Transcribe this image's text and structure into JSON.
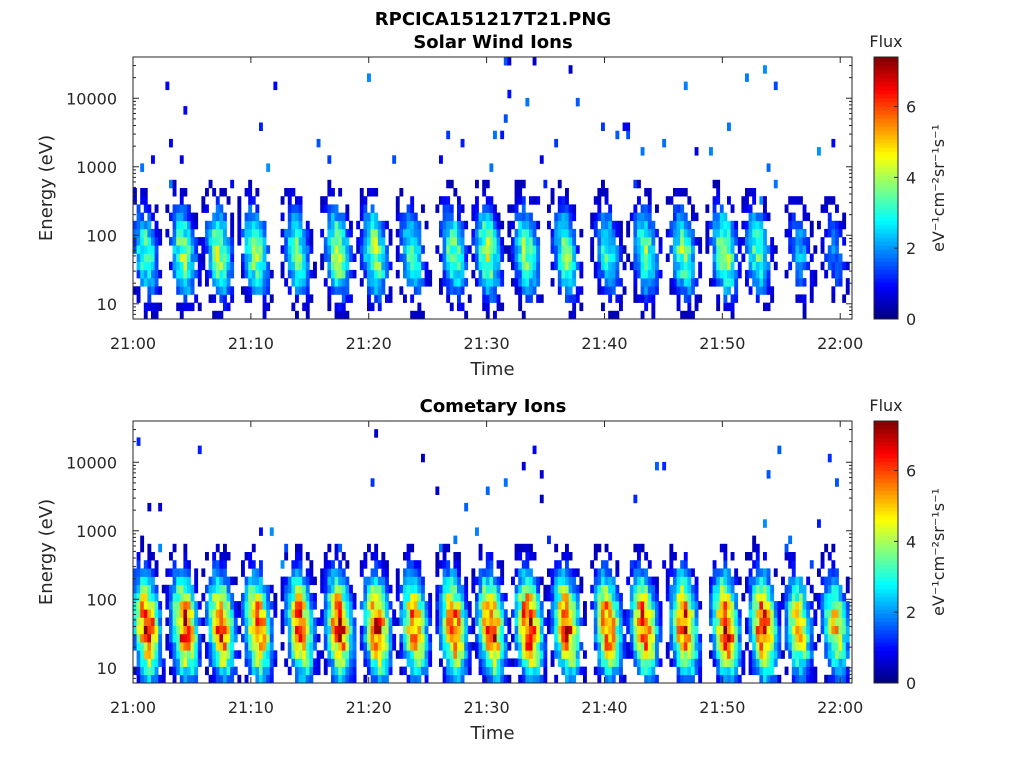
{
  "figure": {
    "title": "RPCICA151217T21.PNG"
  },
  "chart_data": [
    {
      "type": "heatmap",
      "title": "Solar Wind Ions",
      "xlabel": "Time",
      "ylabel": "Energy (eV)",
      "x_range": [
        "21:00",
        "22:01"
      ],
      "x_ticks": [
        "21:00",
        "21:10",
        "21:20",
        "21:30",
        "21:40",
        "21:50",
        "22:00"
      ],
      "y_scale": "log",
      "y_range": [
        6,
        40000
      ],
      "y_ticks": [
        "10",
        "100",
        "1000",
        "10000"
      ],
      "y_tick_values": [
        10,
        100,
        1000,
        10000
      ],
      "colorbar": {
        "title": "Flux",
        "label": "eV⁻¹cm⁻²sr⁻¹s⁻¹",
        "range": [
          0,
          7.4
        ],
        "ticks": [
          "0",
          "2",
          "4",
          "6"
        ],
        "tick_values": [
          0,
          2,
          4,
          6
        ],
        "colormap": "jet"
      },
      "bursts": [
        {
          "t": 1.1,
          "f": 3.4
        },
        {
          "t": 4.3,
          "f": 3.9
        },
        {
          "t": 7.3,
          "f": 4.1
        },
        {
          "t": 10.4,
          "f": 3.9
        },
        {
          "t": 13.9,
          "f": 3.5
        },
        {
          "t": 17.4,
          "f": 4.1
        },
        {
          "t": 20.5,
          "f": 4.0
        },
        {
          "t": 23.7,
          "f": 3.3
        },
        {
          "t": 27.2,
          "f": 3.7
        },
        {
          "t": 30.1,
          "f": 4.2
        },
        {
          "t": 33.4,
          "f": 3.8
        },
        {
          "t": 36.7,
          "f": 3.6
        },
        {
          "t": 40.3,
          "f": 3.1
        },
        {
          "t": 43.5,
          "f": 3.6
        },
        {
          "t": 46.7,
          "f": 3.7
        },
        {
          "t": 50.2,
          "f": 4.1
        },
        {
          "t": 53.0,
          "f": 3.4
        },
        {
          "t": 56.6,
          "f": 2.2
        },
        {
          "t": 59.5,
          "f": 1.8
        }
      ]
    },
    {
      "type": "heatmap",
      "title": "Cometary Ions",
      "xlabel": "Time",
      "ylabel": "Energy (eV)",
      "x_range": [
        "21:00",
        "22:01"
      ],
      "x_ticks": [
        "21:00",
        "21:10",
        "21:20",
        "21:30",
        "21:40",
        "21:50",
        "22:00"
      ],
      "y_scale": "log",
      "y_range": [
        6,
        40000
      ],
      "y_ticks": [
        "10",
        "100",
        "1000",
        "10000"
      ],
      "y_tick_values": [
        10,
        100,
        1000,
        10000
      ],
      "colorbar": {
        "title": "Flux",
        "label": "eV⁻¹cm⁻²sr⁻¹s⁻¹",
        "range": [
          0,
          7.4
        ],
        "ticks": [
          "0",
          "2",
          "4",
          "6"
        ],
        "tick_values": [
          0,
          2,
          4,
          6
        ],
        "colormap": "jet"
      },
      "bursts": [
        {
          "t": 1.2,
          "f": 6.6
        },
        {
          "t": 4.4,
          "f": 6.5
        },
        {
          "t": 7.5,
          "f": 6.3
        },
        {
          "t": 10.6,
          "f": 6.4
        },
        {
          "t": 14.2,
          "f": 6.2
        },
        {
          "t": 17.5,
          "f": 6.5
        },
        {
          "t": 20.7,
          "f": 6.4
        },
        {
          "t": 23.9,
          "f": 5.8
        },
        {
          "t": 27.2,
          "f": 6.2
        },
        {
          "t": 30.4,
          "f": 6.6
        },
        {
          "t": 33.6,
          "f": 6.7
        },
        {
          "t": 36.8,
          "f": 6.4
        },
        {
          "t": 40.3,
          "f": 6.0
        },
        {
          "t": 43.4,
          "f": 6.3
        },
        {
          "t": 46.8,
          "f": 6.4
        },
        {
          "t": 50.3,
          "f": 6.6
        },
        {
          "t": 53.5,
          "f": 6.6
        },
        {
          "t": 56.5,
          "f": 4.9
        },
        {
          "t": 59.6,
          "f": 4.8
        }
      ]
    }
  ]
}
